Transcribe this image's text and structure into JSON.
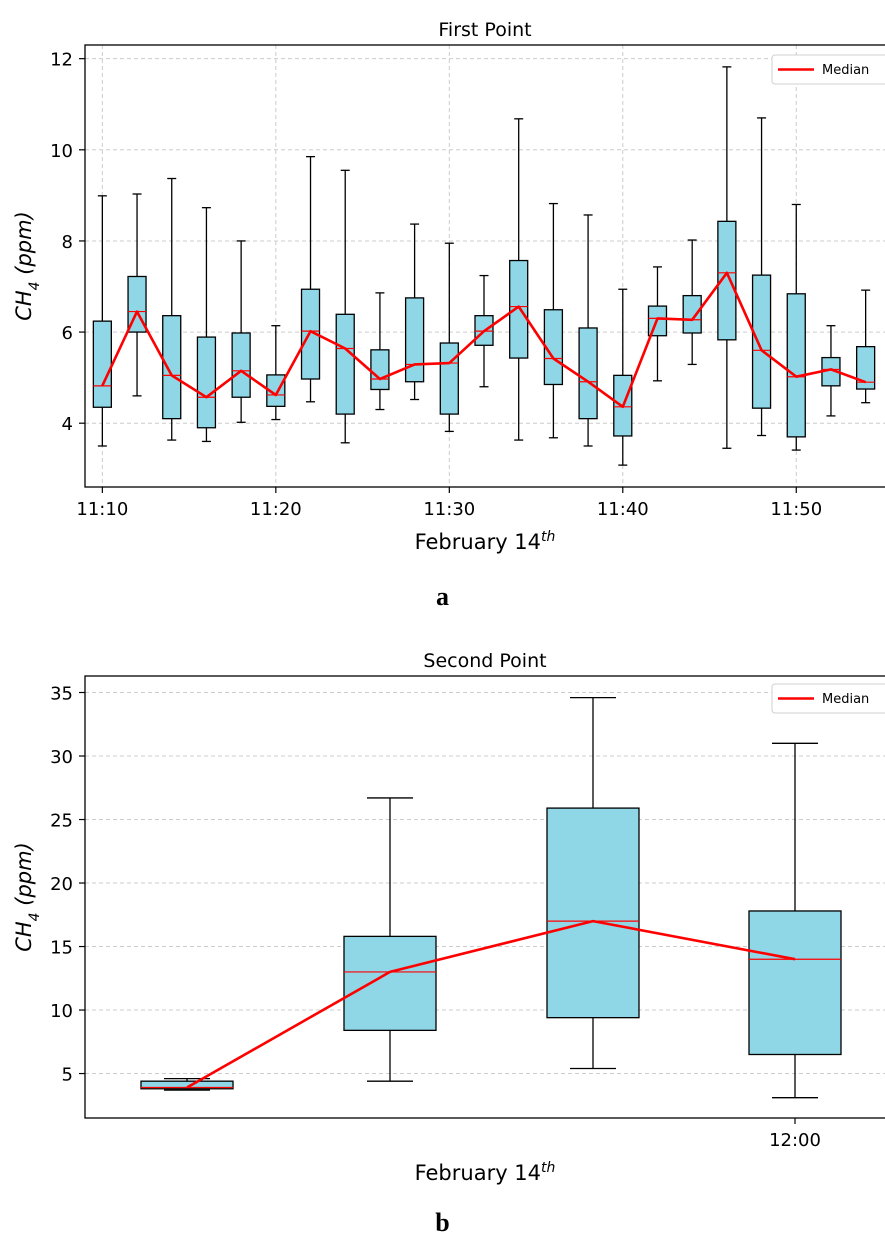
{
  "colors": {
    "box_fill": "#8fd7e6",
    "box_edge": "#000000",
    "median_line": "#ff0000",
    "grid": "#cccccc"
  },
  "panels": [
    {
      "sublabel": "a"
    },
    {
      "sublabel": "b"
    }
  ],
  "chart_data": [
    {
      "type": "box",
      "title": "First Point",
      "xlabel": "February 14th",
      "ylabel": "CH4 (ppm)",
      "ylim": [
        2.6,
        12.3
      ],
      "xlim": [
        "11:09",
        "11:55"
      ],
      "yticks": [
        4,
        6,
        8,
        10,
        12
      ],
      "xticks": [
        "11:10",
        "11:20",
        "11:30",
        "11:40",
        "11:50"
      ],
      "grid": true,
      "legend": {
        "position": "top-right",
        "entries": [
          "Median"
        ]
      },
      "boxes": [
        {
          "time": "11:10",
          "whislo": 3.5,
          "q1": 4.35,
          "med": 4.82,
          "q3": 6.24,
          "whishi": 8.99
        },
        {
          "time": "11:12",
          "whislo": 4.6,
          "q1": 6.0,
          "med": 6.45,
          "q3": 7.22,
          "whishi": 9.03
        },
        {
          "time": "11:14",
          "whislo": 3.63,
          "q1": 4.1,
          "med": 5.05,
          "q3": 6.36,
          "whishi": 9.37
        },
        {
          "time": "11:16",
          "whislo": 3.6,
          "q1": 3.9,
          "med": 4.57,
          "q3": 5.89,
          "whishi": 8.73
        },
        {
          "time": "11:18",
          "whislo": 4.02,
          "q1": 4.57,
          "med": 5.15,
          "q3": 5.98,
          "whishi": 8.0
        },
        {
          "time": "11:20",
          "whislo": 4.08,
          "q1": 4.37,
          "med": 4.62,
          "q3": 5.06,
          "whishi": 6.14
        },
        {
          "time": "11:22",
          "whislo": 4.47,
          "q1": 4.97,
          "med": 6.02,
          "q3": 6.94,
          "whishi": 9.85
        },
        {
          "time": "11:24",
          "whislo": 3.57,
          "q1": 4.2,
          "med": 5.64,
          "q3": 6.39,
          "whishi": 9.55
        },
        {
          "time": "11:26",
          "whislo": 4.3,
          "q1": 4.74,
          "med": 4.97,
          "q3": 5.61,
          "whishi": 6.86
        },
        {
          "time": "11:28",
          "whislo": 4.52,
          "q1": 4.91,
          "med": 5.29,
          "q3": 6.75,
          "whishi": 8.37
        },
        {
          "time": "11:30",
          "whislo": 3.82,
          "q1": 4.2,
          "med": 5.32,
          "q3": 5.76,
          "whishi": 7.95
        },
        {
          "time": "11:32",
          "whislo": 4.8,
          "q1": 5.71,
          "med": 6.02,
          "q3": 6.36,
          "whishi": 7.24
        },
        {
          "time": "11:34",
          "whislo": 3.63,
          "q1": 5.43,
          "med": 6.56,
          "q3": 7.57,
          "whishi": 10.68
        },
        {
          "time": "11:36",
          "whislo": 3.68,
          "q1": 4.85,
          "med": 5.42,
          "q3": 6.49,
          "whishi": 8.82
        },
        {
          "time": "11:38",
          "whislo": 3.5,
          "q1": 4.1,
          "med": 4.91,
          "q3": 6.09,
          "whishi": 8.57
        },
        {
          "time": "11:40",
          "whislo": 3.08,
          "q1": 3.72,
          "med": 4.36,
          "q3": 5.05,
          "whishi": 6.94
        },
        {
          "time": "11:42",
          "whislo": 4.93,
          "q1": 5.92,
          "med": 6.3,
          "q3": 6.57,
          "whishi": 7.43
        },
        {
          "time": "11:44",
          "whislo": 5.29,
          "q1": 5.98,
          "med": 6.27,
          "q3": 6.8,
          "whishi": 8.02
        },
        {
          "time": "11:46",
          "whislo": 3.45,
          "q1": 5.83,
          "med": 7.3,
          "q3": 8.43,
          "whishi": 11.82
        },
        {
          "time": "11:48",
          "whislo": 3.73,
          "q1": 4.33,
          "med": 5.6,
          "q3": 7.25,
          "whishi": 10.7
        },
        {
          "time": "11:50",
          "whislo": 3.41,
          "q1": 3.7,
          "med": 5.02,
          "q3": 6.84,
          "whishi": 8.8
        },
        {
          "time": "11:52",
          "whislo": 4.16,
          "q1": 4.82,
          "med": 5.18,
          "q3": 5.44,
          "whishi": 6.14
        },
        {
          "time": "11:54",
          "whislo": 4.45,
          "q1": 4.75,
          "med": 4.9,
          "q3": 5.68,
          "whishi": 6.92
        }
      ]
    },
    {
      "type": "box",
      "title": "Second Point",
      "xlabel": "February 14th",
      "ylabel": "CH4 (ppm)",
      "ylim": [
        1.5,
        36.3
      ],
      "yticks": [
        5,
        10,
        15,
        20,
        25,
        30,
        35
      ],
      "xticks": [
        "12:00"
      ],
      "grid": true,
      "legend": {
        "position": "top-right",
        "entries": [
          "Median"
        ]
      },
      "boxes": [
        {
          "whislo": 3.7,
          "q1": 3.8,
          "med": 3.9,
          "q3": 4.4,
          "whishi": 4.6
        },
        {
          "whislo": 4.4,
          "q1": 8.4,
          "med": 13.0,
          "q3": 15.8,
          "whishi": 26.7
        },
        {
          "whislo": 5.4,
          "q1": 9.4,
          "med": 17.0,
          "q3": 25.9,
          "whishi": 34.6
        },
        {
          "whislo": 3.1,
          "q1": 6.5,
          "med": 14.0,
          "q3": 17.8,
          "whishi": 31.0
        }
      ]
    }
  ]
}
